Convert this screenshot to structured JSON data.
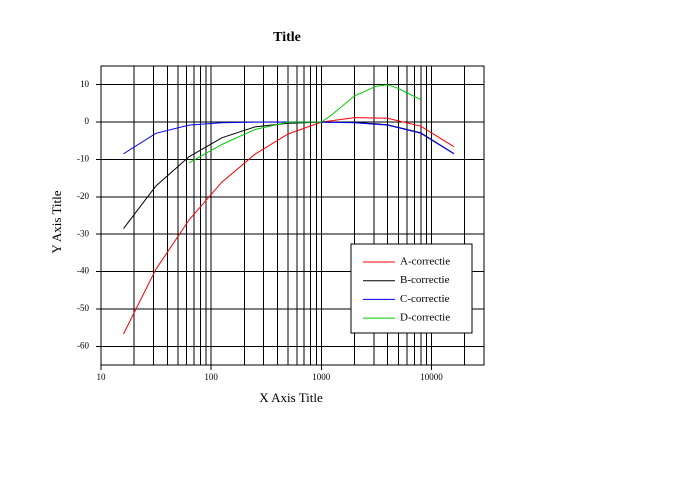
{
  "chart_data": {
    "type": "line",
    "title": "Title",
    "x_label": "X Axis Title",
    "y_label": "Y Axis Title",
    "xscale": "log",
    "xlim": [
      10,
      30000
    ],
    "xticks": [
      10,
      100,
      1000,
      10000
    ],
    "xminorticks": [
      20,
      30,
      40,
      50,
      60,
      70,
      80,
      90,
      200,
      300,
      400,
      500,
      600,
      700,
      800,
      900,
      2000,
      3000,
      4000,
      5000,
      6000,
      7000,
      8000,
      9000,
      20000
    ],
    "ylim": [
      -65,
      15
    ],
    "yticks": [
      -60,
      -50,
      -40,
      -30,
      -20,
      -10,
      0,
      10
    ],
    "grid": true,
    "legend": "lower right",
    "series": [
      {
        "name": "A-correctie",
        "color": "#ff0000",
        "x": [
          16,
          31.5,
          63,
          125,
          250,
          500,
          1000,
          2000,
          4000,
          8000,
          16000
        ],
        "values": [
          -56.7,
          -39.4,
          -26.2,
          -16.1,
          -8.6,
          -3.2,
          0,
          1.2,
          1.0,
          -1.1,
          -6.6
        ]
      },
      {
        "name": "B-correctie",
        "color": "#000000",
        "x": [
          16,
          31.5,
          63,
          125,
          250,
          500,
          1000,
          2000,
          4000,
          8000,
          16000
        ],
        "values": [
          -28.5,
          -17.1,
          -9.3,
          -4.2,
          -1.3,
          -0.3,
          0,
          -0.1,
          -0.7,
          -2.9,
          -8.4
        ]
      },
      {
        "name": "C-correctie",
        "color": "#0000ff",
        "x": [
          16,
          31.5,
          63,
          125,
          250,
          500,
          1000,
          2000,
          4000,
          8000,
          16000
        ],
        "values": [
          -8.5,
          -3.0,
          -0.8,
          -0.2,
          0,
          0,
          0,
          -0.2,
          -0.8,
          -3.0,
          -8.5
        ]
      },
      {
        "name": "D-correctie",
        "color": "#00cc00",
        "x": [
          63,
          125,
          250,
          500,
          1000,
          1250,
          2000,
          3150,
          4000,
          5000,
          6300,
          8000
        ],
        "values": [
          -10.9,
          -6,
          -2,
          0,
          0,
          2,
          7,
          9.6,
          10,
          9,
          7.5,
          6
        ]
      }
    ]
  }
}
